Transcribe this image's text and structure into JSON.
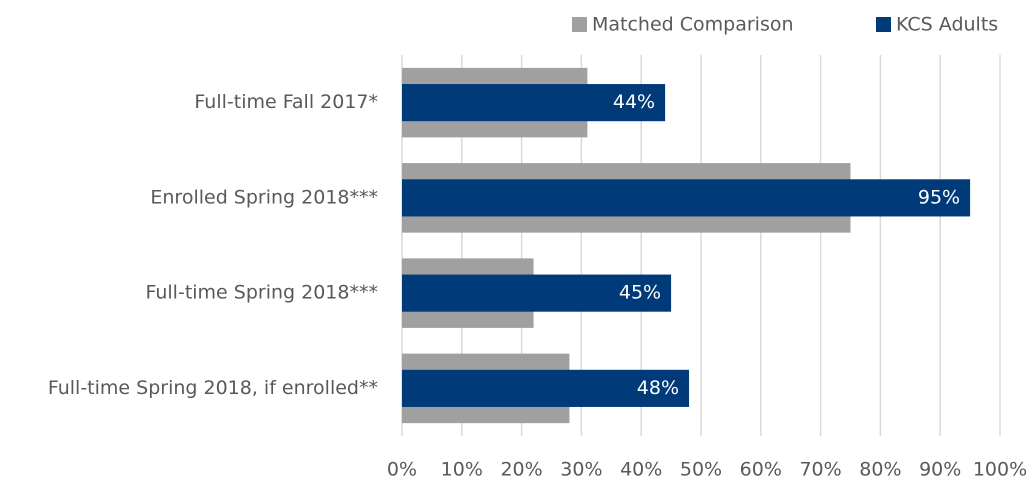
{
  "chart_data": {
    "type": "bar",
    "orientation": "horizontal",
    "categories": [
      "Full-time Fall 2017*",
      "Enrolled Spring 2018***",
      "Full-time Spring 2018***",
      "Full-time Spring 2018, if enrolled**"
    ],
    "series": [
      {
        "name": "Matched Comparison",
        "color": "#a0a0a0",
        "values": [
          31,
          75,
          22,
          28
        ]
      },
      {
        "name": "KCS Adults",
        "color": "#003a78",
        "values": [
          44,
          95,
          45,
          48
        ],
        "value_labels": [
          "44%",
          "95%",
          "45%",
          "48%"
        ]
      }
    ],
    "xlim": [
      0,
      100
    ],
    "xticks": [
      {
        "value": 0,
        "label": "0%"
      },
      {
        "value": 10,
        "label": "10%"
      },
      {
        "value": 20,
        "label": "20%"
      },
      {
        "value": 30,
        "label": "30%"
      },
      {
        "value": 40,
        "label": "40%"
      },
      {
        "value": 50,
        "label": "50%"
      },
      {
        "value": 60,
        "label": "60%"
      },
      {
        "value": 70,
        "label": "70%"
      },
      {
        "value": 80,
        "label": "80%"
      },
      {
        "value": 90,
        "label": "90%"
      },
      {
        "value": 100,
        "label": "100%"
      }
    ],
    "grid": true,
    "legend": "top-right"
  }
}
